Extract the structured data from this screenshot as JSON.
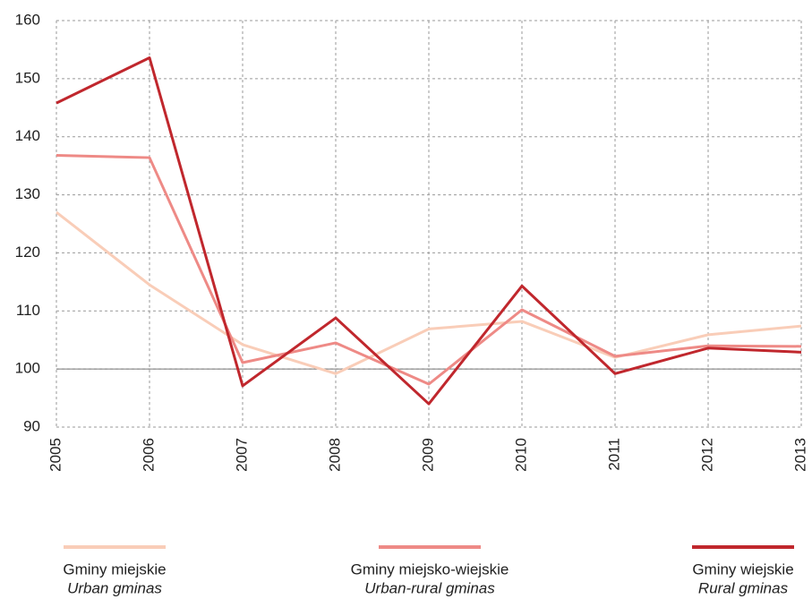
{
  "chart_data": {
    "type": "line",
    "categories": [
      "2005",
      "2006",
      "2007",
      "2008",
      "2009",
      "2010",
      "2011",
      "2012",
      "2013"
    ],
    "series": [
      {
        "name": "Gminy miejskie",
        "name_en": "Urban gminas",
        "color": "#f9cdb8",
        "values": [
          127,
          114.5,
          104.2,
          99.2,
          106.9,
          108.2,
          102,
          105.9,
          107.4
        ]
      },
      {
        "name": "Gminy miejsko-wiejskie",
        "name_en": "Urban-rural gminas",
        "color": "#ee8a86",
        "values": [
          136.8,
          136.4,
          101.1,
          104.5,
          97.4,
          110.2,
          102.2,
          104,
          103.9
        ]
      },
      {
        "name": "Gminy wiejskie",
        "name_en": "Rural gminas",
        "color": "#c0272d",
        "values": [
          145.8,
          153.6,
          97.1,
          108.8,
          94,
          114.3,
          99.2,
          103.6,
          102.9
        ]
      }
    ],
    "ylim": [
      90,
      160
    ],
    "yticks": [
      90,
      100,
      110,
      120,
      130,
      140,
      150,
      160
    ],
    "reference_line": 100,
    "grid": true,
    "legend": "bottom"
  }
}
